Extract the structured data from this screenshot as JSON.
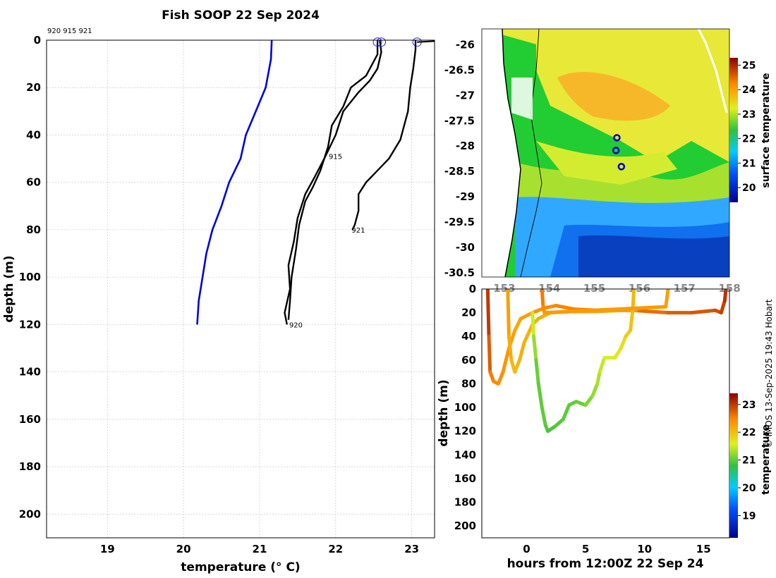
{
  "title": "Fish SOOP 22 Sep 2024",
  "float_ids_label": "920 915 921",
  "credit": "© IMOS 13-Sep-2025 19:43 Hobart",
  "chart_data": [
    {
      "type": "line",
      "name": "profile-temperature",
      "xlabel": "temperature (° C)",
      "ylabel": "depth (m)",
      "xlim": [
        18.2,
        23.3
      ],
      "ylim": [
        210,
        0
      ],
      "xticks": [
        19,
        20,
        21,
        22,
        23
      ],
      "yticks": [
        0,
        20,
        40,
        60,
        80,
        100,
        120,
        140,
        160,
        180,
        200
      ],
      "grid": true,
      "reference_profile": {
        "color": "#0000dd",
        "points": [
          [
            21.16,
            0
          ],
          [
            21.15,
            8
          ],
          [
            21.08,
            20
          ],
          [
            20.95,
            30
          ],
          [
            20.82,
            40
          ],
          [
            20.75,
            50
          ],
          [
            20.6,
            60
          ],
          [
            20.5,
            70
          ],
          [
            20.38,
            80
          ],
          [
            20.3,
            90
          ],
          [
            20.25,
            100
          ],
          [
            20.2,
            110
          ],
          [
            20.18,
            120
          ]
        ]
      },
      "series": [
        {
          "name": "920",
          "label_at": [
            21.38,
            120
          ],
          "points": [
            [
              22.58,
              0
            ],
            [
              22.6,
              5
            ],
            [
              22.55,
              12
            ],
            [
              22.45,
              17
            ],
            [
              22.3,
              22
            ],
            [
              22.1,
              30
            ],
            [
              22.0,
              40
            ],
            [
              21.85,
              50
            ],
            [
              21.72,
              58
            ],
            [
              21.6,
              65
            ],
            [
              21.5,
              75
            ],
            [
              21.45,
              85
            ],
            [
              21.38,
              95
            ],
            [
              21.4,
              105
            ],
            [
              21.33,
              115
            ],
            [
              21.36,
              120
            ]
          ]
        },
        {
          "name": "915",
          "label_at": [
            21.9,
            49
          ],
          "points": [
            [
              22.55,
              0
            ],
            [
              22.55,
              6
            ],
            [
              22.4,
              15
            ],
            [
              22.2,
              20
            ],
            [
              22.1,
              28
            ],
            [
              21.95,
              36
            ],
            [
              21.9,
              45
            ],
            [
              21.8,
              55
            ],
            [
              21.7,
              62
            ],
            [
              21.6,
              68
            ],
            [
              21.52,
              78
            ],
            [
              21.48,
              88
            ],
            [
              21.42,
              100
            ],
            [
              21.4,
              110
            ],
            [
              21.38,
              118
            ]
          ]
        },
        {
          "name": "921",
          "label_at": [
            22.2,
            80
          ],
          "points": [
            [
              23.05,
              0
            ],
            [
              23.05,
              4
            ],
            [
              23.02,
              12
            ],
            [
              22.98,
              20
            ],
            [
              22.95,
              30
            ],
            [
              22.85,
              42
            ],
            [
              22.7,
              50
            ],
            [
              22.55,
              55
            ],
            [
              22.4,
              60
            ],
            [
              22.3,
              65
            ],
            [
              22.3,
              72
            ],
            [
              22.25,
              78
            ],
            [
              22.22,
              80
            ]
          ]
        }
      ],
      "surface_markers": [
        22.55,
        22.6,
        23.07
      ]
    },
    {
      "type": "heatmap",
      "name": "surface-temperature-map",
      "xticks_shown": [
        "153",
        "154",
        "155",
        "156",
        "157",
        "158"
      ],
      "yticks": [
        -26,
        -26.5,
        -27,
        -27.5,
        -28,
        -28.5,
        -29,
        -29.5,
        -30,
        -30.5
      ],
      "xlim": [
        152.5,
        158.0
      ],
      "ylim": [
        -30.6,
        -25.7
      ],
      "float_positions": [
        [
          155.5,
          -27.85
        ],
        [
          155.48,
          -28.1
        ],
        [
          155.6,
          -28.42
        ]
      ],
      "colorbar": {
        "label": "surface temperature",
        "ticks": [
          20,
          21,
          22,
          23,
          24,
          25
        ],
        "range": [
          19.4,
          25.3
        ]
      }
    },
    {
      "type": "scatter",
      "name": "depth-time",
      "xlabel": "hours from 12:00Z 22 Sep 24",
      "ylabel": "depth (m)",
      "xlim": [
        -3.8,
        17.2
      ],
      "ylim": [
        210,
        0
      ],
      "xticks": [
        0,
        5,
        10,
        15
      ],
      "yticks": [
        0,
        20,
        40,
        60,
        80,
        100,
        120,
        140,
        160,
        180,
        200
      ],
      "colorbar": {
        "label": "temperature",
        "ticks": [
          19,
          20,
          21,
          22,
          23
        ],
        "range": [
          18.2,
          23.4
        ]
      },
      "tracks": [
        {
          "points": [
            [
              -3.3,
              0,
              23.1
            ],
            [
              -3.2,
              40,
              22.9
            ],
            [
              -3.1,
              70,
              22.6
            ],
            [
              -2.8,
              78,
              22.5
            ],
            [
              -2.4,
              80,
              22.4
            ],
            [
              -2.0,
              70,
              22.4
            ],
            [
              -1.5,
              50,
              22.3
            ],
            [
              -1.0,
              35,
              22.2
            ],
            [
              -0.5,
              25,
              22.2
            ],
            [
              0.5,
              20,
              22.3
            ],
            [
              1.5,
              16,
              22.4
            ],
            [
              2.5,
              14,
              22.5
            ],
            [
              4,
              17,
              22.5
            ],
            [
              6,
              18,
              22.5
            ],
            [
              9,
              18,
              22.6
            ],
            [
              12,
              20,
              22.7
            ],
            [
              14,
              20,
              22.8
            ],
            [
              16,
              18,
              22.8
            ],
            [
              16.5,
              20,
              22.9
            ],
            [
              16.8,
              10,
              23.0
            ],
            [
              16.9,
              0,
              23.1
            ]
          ]
        },
        {
          "points": [
            [
              -1.6,
              0,
              22.3
            ],
            [
              -1.5,
              40,
              22.2
            ],
            [
              -1.3,
              60,
              22.1
            ],
            [
              -1.0,
              70,
              22.0
            ],
            [
              -0.6,
              60,
              22.1
            ],
            [
              -0.2,
              45,
              22.1
            ],
            [
              0.5,
              30,
              22.1
            ],
            [
              1.0,
              25,
              22.1
            ],
            [
              2.0,
              20,
              22.2
            ],
            [
              4,
              19,
              22.2
            ],
            [
              6,
              19,
              22.2
            ],
            [
              8,
              18,
              22.3
            ],
            [
              9.3,
              18,
              22.3
            ]
          ]
        },
        {
          "points": [
            [
              0.5,
              20,
              21.6
            ],
            [
              0.6,
              40,
              21.4
            ],
            [
              0.8,
              60,
              21.1
            ],
            [
              1.0,
              80,
              21.0
            ],
            [
              1.3,
              100,
              21.0
            ],
            [
              1.6,
              115,
              21.0
            ],
            [
              1.8,
              120,
              20.9
            ],
            [
              2.4,
              116,
              20.9
            ],
            [
              3.1,
              110,
              21.0
            ],
            [
              3.6,
              98,
              21.0
            ],
            [
              4.2,
              95,
              21.0
            ],
            [
              5.0,
              98,
              21.1
            ],
            [
              5.6,
              90,
              21.2
            ],
            [
              6.0,
              80,
              21.3
            ],
            [
              6.2,
              70,
              21.4
            ],
            [
              6.6,
              58,
              21.5
            ],
            [
              7.5,
              58,
              21.6
            ],
            [
              8.0,
              50,
              21.7
            ],
            [
              8.4,
              40,
              21.8
            ],
            [
              8.8,
              35,
              21.9
            ],
            [
              9.0,
              18,
              22.0
            ],
            [
              9.1,
              0,
              22.1
            ]
          ]
        },
        {
          "points": [
            [
              1.3,
              0,
              22.6
            ],
            [
              1.4,
              15,
              22.5
            ],
            [
              1.5,
              20,
              22.4
            ],
            [
              11.8,
              15,
              22.2
            ],
            [
              12.0,
              0,
              22.3
            ]
          ]
        }
      ]
    }
  ]
}
